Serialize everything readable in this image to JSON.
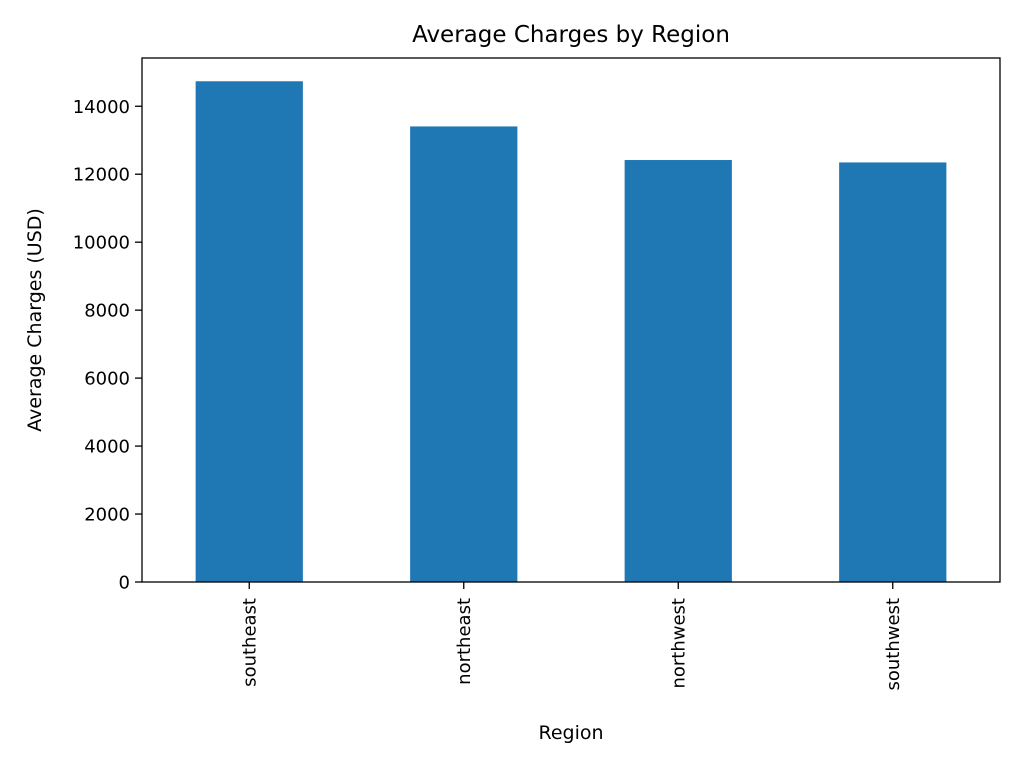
{
  "chart_data": {
    "type": "bar",
    "title": "Average Charges by Region",
    "xlabel": "Region",
    "ylabel": "Average Charges (USD)",
    "categories": [
      "southeast",
      "northeast",
      "northwest",
      "southwest"
    ],
    "values": [
      14735.4,
      13406.4,
      12417.6,
      12346.9
    ],
    "ylim": [
      0,
      15420
    ],
    "yticks": [
      0,
      2000,
      4000,
      6000,
      8000,
      10000,
      12000,
      14000
    ],
    "ytick_labels": [
      "0",
      "2000",
      "4000",
      "6000",
      "8000",
      "10000",
      "12000",
      "14000"
    ],
    "bar_color": "#1f77b4",
    "grid": false,
    "legend": "none"
  }
}
